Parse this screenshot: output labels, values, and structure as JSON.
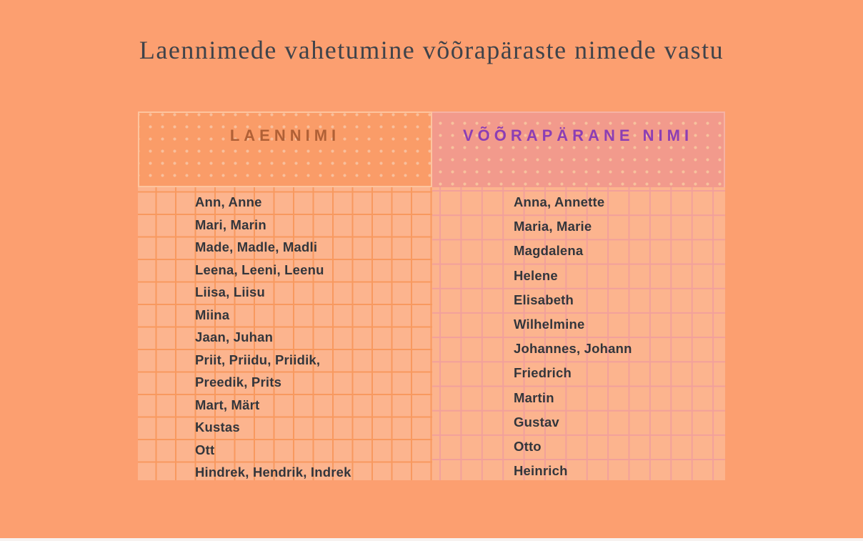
{
  "title": "Laennimede vahetumine võõrapäraste nimede vastu",
  "table": {
    "columns": [
      {
        "header": "LAENNIMI",
        "rows": [
          "Ann, Anne",
          "Mari, Marin",
          "Made, Madle, Madli",
          "Leena, Leeni, Leenu",
          "Liisa, Liisu",
          "Miina",
          "Jaan, Juhan",
          "Priit, Priidu, Priidik,",
          "Preedik, Prits",
          "Mart, Märt",
          "Kustas",
          "Ott",
          "Hindrek, Hendrik, Indrek"
        ]
      },
      {
        "header": "VÕÕRAPÄRANE NIMI",
        "rows": [
          "Anna, Annette",
          "Maria, Marie",
          "Magdalena",
          "Helene",
          "Elisabeth",
          "Wilhelmine",
          "Johannes, Johann",
          "Friedrich",
          "Martin",
          "Gustav",
          "Otto",
          "Heinrich"
        ]
      }
    ]
  },
  "colors": {
    "pageBg": "#fc9f70",
    "titleColor": "#3f434a",
    "nameColor": "#33363c",
    "leftHeaderBg": "#fa9c68",
    "leftHeaderDot": "#f8bf9c",
    "leftHeaderText": "#b06036",
    "leftHeaderBorder": "#fdc49e",
    "rightHeaderBg": "#f29a8c",
    "rightHeaderDot": "#f7c29d",
    "rightHeaderText": "#8c3eb4",
    "rightHeaderBorder": "#f6b2a4",
    "bodyFill": "#fcb48e",
    "leftGridLine": "#f8995f",
    "rightGridLine": "#f2a09b",
    "footerStrip": "#f7f2f0"
  }
}
